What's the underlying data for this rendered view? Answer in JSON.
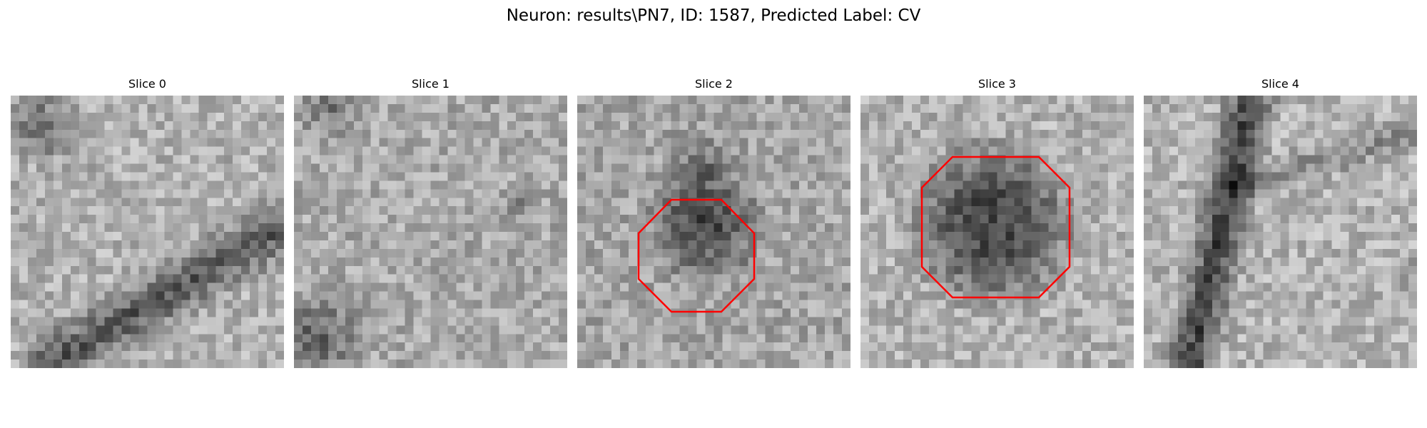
{
  "figure": {
    "title": "Neuron: results\\PN7, ID: 1587, Predicted Label: CV"
  },
  "colors": {
    "contour": "#ff0000",
    "background": "#ffffff"
  },
  "panels": [
    {
      "title": "Slice 0",
      "has_contour": false
    },
    {
      "title": "Slice 1",
      "has_contour": false
    },
    {
      "title": "Slice 2",
      "has_contour": true
    },
    {
      "title": "Slice 3",
      "has_contour": true
    },
    {
      "title": "Slice 4",
      "has_contour": false
    }
  ]
}
